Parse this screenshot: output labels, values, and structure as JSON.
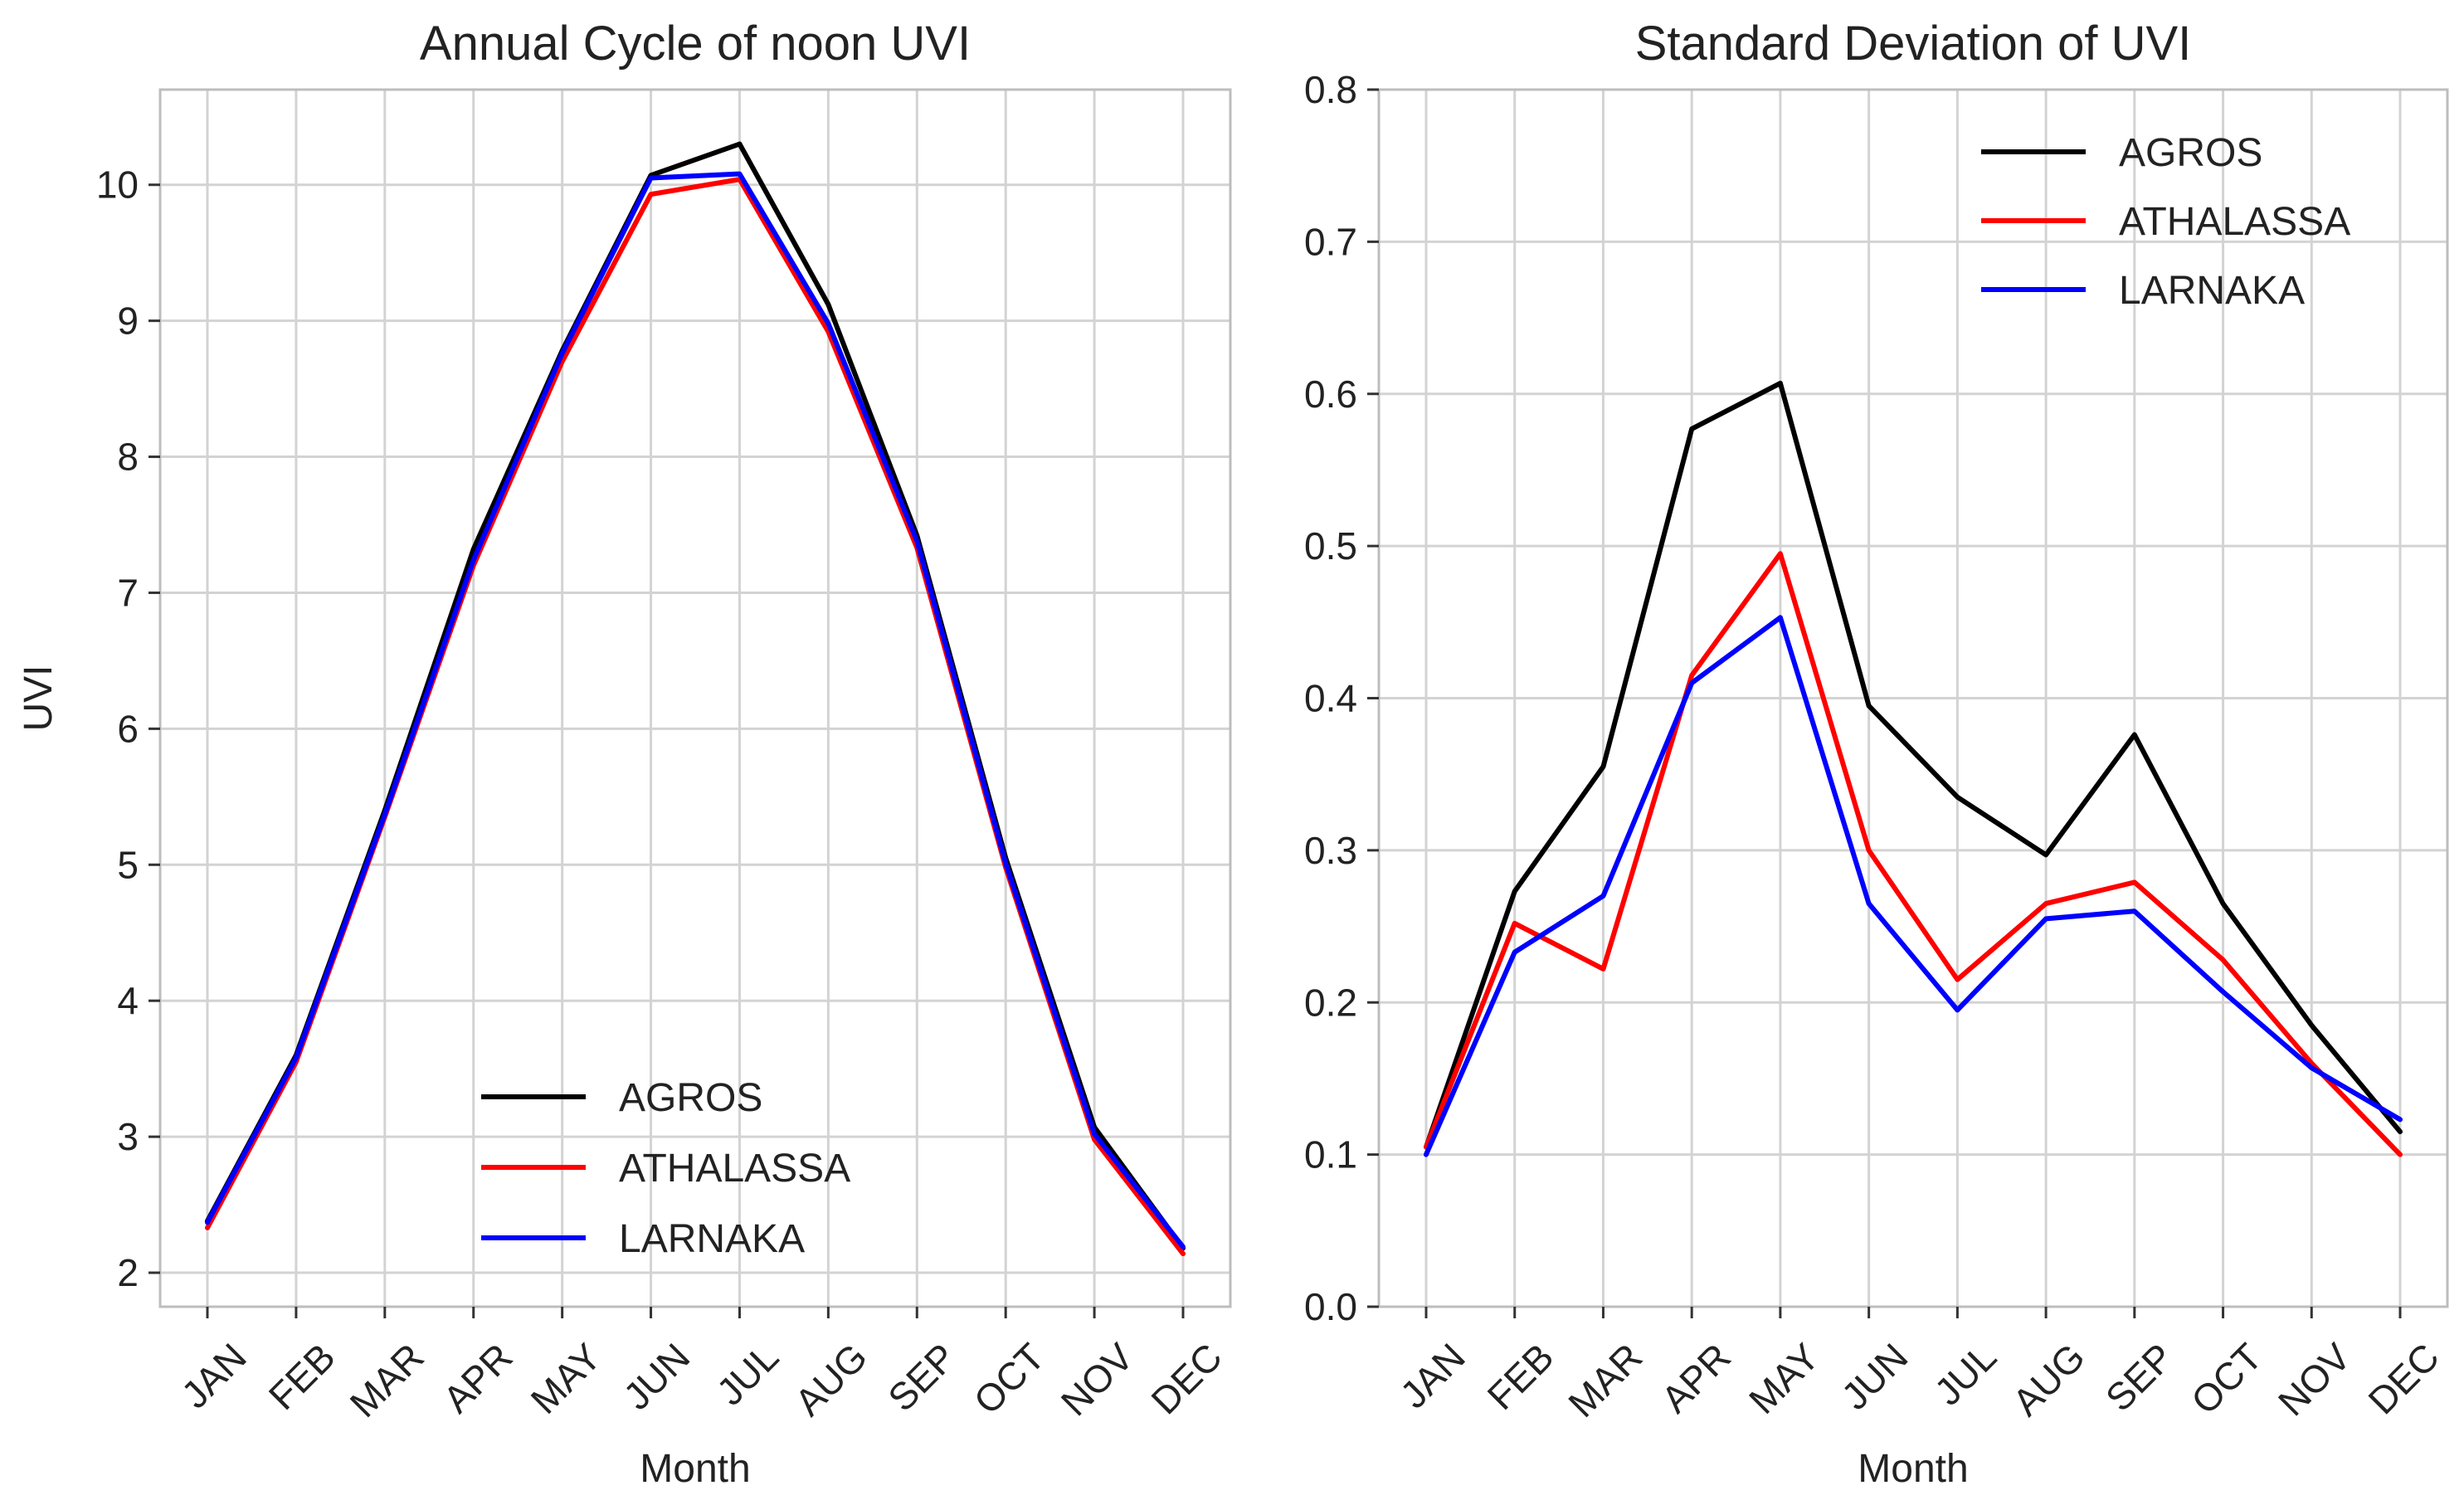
{
  "chart_data": [
    {
      "type": "line",
      "title": "Annual Cycle of noon UVI",
      "xlabel": "Month",
      "ylabel": "UVI",
      "categories": [
        "JAN",
        "FEB",
        "MAR",
        "APR",
        "MAY",
        "JUN",
        "JUL",
        "AUG",
        "SEP",
        "OCT",
        "NOV",
        "DEC"
      ],
      "ylim": [
        1.75,
        10.7
      ],
      "yticks": [
        2,
        3,
        4,
        5,
        6,
        7,
        8,
        9,
        10
      ],
      "grid": true,
      "legend": "lower-center",
      "series": [
        {
          "name": "AGROS",
          "color": "#000000",
          "values": [
            2.38,
            3.6,
            5.4,
            7.32,
            8.78,
            10.07,
            10.3,
            9.12,
            7.42,
            5.05,
            3.07,
            2.18
          ]
        },
        {
          "name": "ATHALASSA",
          "color": "#ff0000",
          "values": [
            2.33,
            3.55,
            5.35,
            7.2,
            8.7,
            9.93,
            10.04,
            8.92,
            7.33,
            4.98,
            2.98,
            2.14
          ]
        },
        {
          "name": "LARNAKA",
          "color": "#0000ff",
          "values": [
            2.37,
            3.58,
            5.37,
            7.24,
            8.76,
            10.05,
            10.08,
            8.98,
            7.38,
            5.01,
            3.02,
            2.19
          ]
        }
      ]
    },
    {
      "type": "line",
      "title": "Standard Deviation of UVI",
      "xlabel": "Month",
      "ylabel": "",
      "categories": [
        "JAN",
        "FEB",
        "MAR",
        "APR",
        "MAY",
        "JUN",
        "JUL",
        "AUG",
        "SEP",
        "OCT",
        "NOV",
        "DEC"
      ],
      "ylim": [
        0.0,
        0.8
      ],
      "yticks": [
        0.0,
        0.1,
        0.2,
        0.3,
        0.4,
        0.5,
        0.6,
        0.7,
        0.8
      ],
      "yticklabels": [
        "0.0",
        "0.1",
        "0.2",
        "0.3",
        "0.4",
        "0.5",
        "0.6",
        "0.7",
        "0.8"
      ],
      "grid": true,
      "legend": "upper-right",
      "series": [
        {
          "name": "AGROS",
          "color": "#000000",
          "values": [
            0.105,
            0.273,
            0.355,
            0.577,
            0.607,
            0.395,
            0.335,
            0.297,
            0.376,
            0.265,
            0.185,
            0.115
          ]
        },
        {
          "name": "ATHALASSA",
          "color": "#ff0000",
          "values": [
            0.105,
            0.252,
            0.222,
            0.415,
            0.495,
            0.3,
            0.215,
            0.265,
            0.279,
            0.228,
            0.16,
            0.1
          ]
        },
        {
          "name": "LARNAKA",
          "color": "#0000ff",
          "values": [
            0.1,
            0.233,
            0.27,
            0.41,
            0.453,
            0.265,
            0.195,
            0.255,
            0.26,
            0.207,
            0.157,
            0.123
          ]
        }
      ]
    }
  ]
}
